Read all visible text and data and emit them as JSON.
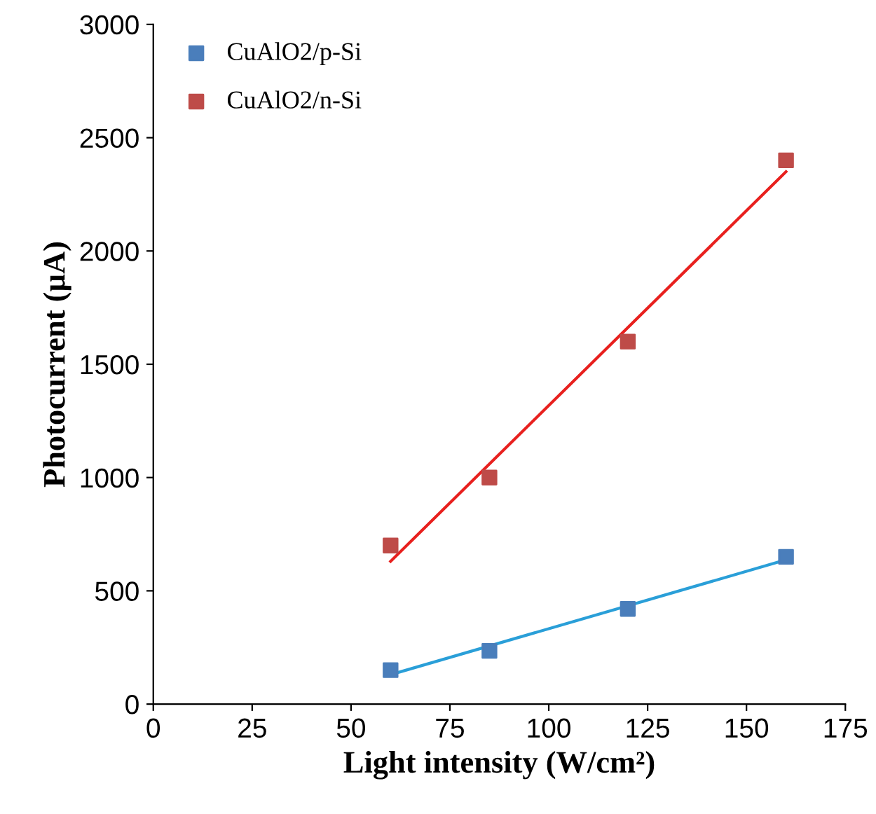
{
  "chart_data": {
    "type": "scatter",
    "xlabel": "Light intensity (W/cm²)",
    "ylabel": "Photocurrent (µA)",
    "xlim": [
      0,
      175
    ],
    "xticks": [
      0,
      25,
      50,
      75,
      100,
      125,
      150,
      175
    ],
    "ylim": [
      0,
      3000
    ],
    "yticks": [
      0,
      500,
      1000,
      1500,
      2000,
      2500,
      3000
    ],
    "grid": false,
    "legend": "top left",
    "series": [
      {
        "name": "CuAlO2/p-Si",
        "marker": "square",
        "color": "#4a7ebb",
        "x": [
          60,
          85,
          120,
          160
        ],
        "values": [
          150,
          235,
          420,
          650
        ]
      },
      {
        "name": "CuAlO2/n-Si",
        "marker": "square",
        "color": "#be4b48",
        "x": [
          60,
          85,
          120,
          160
        ],
        "values": [
          700,
          1000,
          1600,
          2400
        ]
      },
      {
        "type": "line",
        "marker": "none",
        "color": "#2a9fd8",
        "x": [
          60,
          160
        ],
        "values": [
          130,
          637
        ]
      },
      {
        "type": "line",
        "marker": "none",
        "color": "#e8201e",
        "x": [
          60,
          160
        ],
        "values": [
          630,
          2350
        ]
      }
    ]
  }
}
